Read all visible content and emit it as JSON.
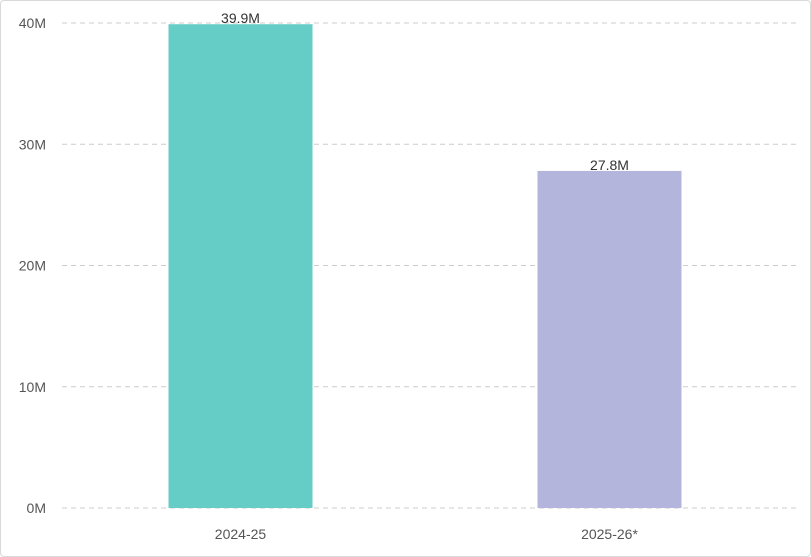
{
  "chart_data": {
    "type": "bar",
    "title": "",
    "xlabel": "",
    "ylabel": "",
    "categories": [
      "2024-25",
      "2025-26*"
    ],
    "values": [
      39900000,
      27800000
    ],
    "data_labels": [
      "39.9M",
      "27.8M"
    ],
    "bar_colors": [
      "#66cdc6",
      "#b3b5dd"
    ],
    "ylim": [
      0,
      40000000
    ],
    "yticks": [
      {
        "value": 0,
        "label": "0M"
      },
      {
        "value": 10000000,
        "label": "10M"
      },
      {
        "value": 20000000,
        "label": "20M"
      },
      {
        "value": 30000000,
        "label": "30M"
      },
      {
        "value": 40000000,
        "label": "40M"
      }
    ],
    "grid": true,
    "legend": false
  }
}
